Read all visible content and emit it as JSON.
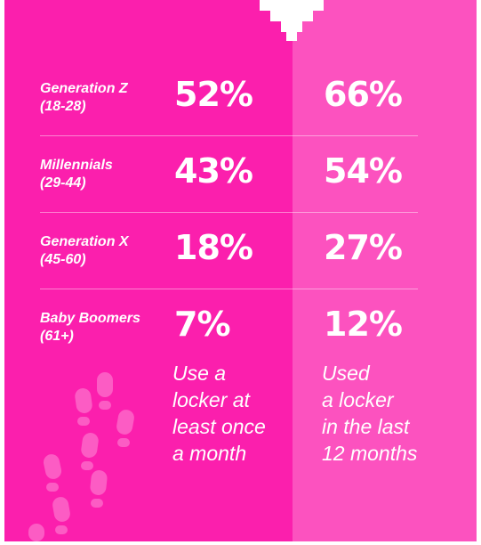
{
  "colors": {
    "left_column": "#fb1fad",
    "right_column": "#fc52bf",
    "text": "#ffffff"
  },
  "chart_data": {
    "type": "table",
    "categories": [
      {
        "name": "Generation Z",
        "range": "(18-28)"
      },
      {
        "name": "Millennials",
        "range": "(29-44)"
      },
      {
        "name": "Generation X",
        "range": "(45-60)"
      },
      {
        "name": "Baby Boomers",
        "range": "(61+)"
      }
    ],
    "series": [
      {
        "name": "Use a locker at least once a month",
        "values": [
          52,
          43,
          18,
          7
        ]
      },
      {
        "name": "Used a locker in the last 12 months",
        "values": [
          66,
          54,
          27,
          12
        ]
      }
    ],
    "labels": {
      "col_a": [
        "52%",
        "43%",
        "18%",
        "7%"
      ],
      "col_b": [
        "66%",
        "54%",
        "27%",
        "12%"
      ]
    },
    "caption_a": "Use a\nlocker at\nleast once\na month",
    "caption_b": "Used\na locker\nin the last\n12 months"
  },
  "decoration": {
    "icon": "footprints-icon"
  }
}
